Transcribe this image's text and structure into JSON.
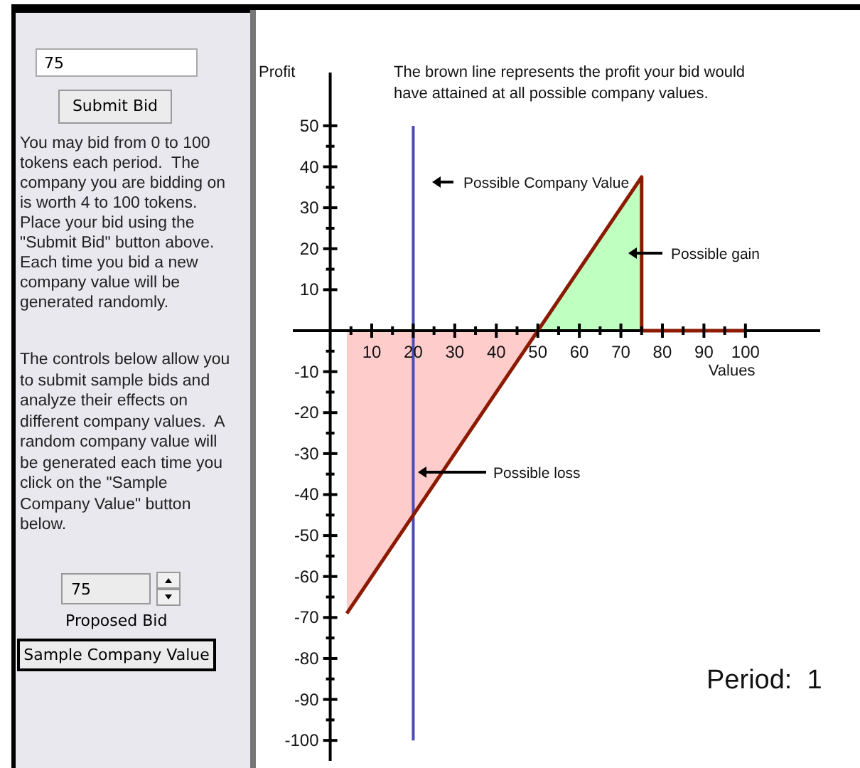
{
  "chart_data": {
    "type": "line",
    "title": "The brown line represents the profit your bid would have attained at all possible company values.",
    "xlabel": "Values",
    "ylabel": "Profit",
    "xlim": [
      -9,
      118
    ],
    "ylim": [
      -105,
      63
    ],
    "xticks": [
      {
        "value": 5,
        "label": null
      },
      10,
      {
        "value": 15,
        "label": null
      },
      20,
      {
        "value": 25,
        "label": null
      },
      30,
      {
        "value": 35,
        "label": null
      },
      40,
      {
        "value": 45,
        "label": null
      },
      50,
      {
        "value": 55,
        "label": null
      },
      60,
      {
        "value": 65,
        "label": null
      },
      70,
      {
        "value": 75,
        "label": null
      },
      80,
      {
        "value": 85,
        "label": null
      },
      90,
      {
        "value": 95,
        "label": null
      },
      100
    ],
    "yticks": [
      -100,
      {
        "value": -95,
        "label": null
      },
      -90,
      {
        "value": -85,
        "label": null
      },
      -80,
      {
        "value": -75,
        "label": null
      },
      -70,
      {
        "value": -65,
        "label": null
      },
      -60,
      {
        "value": -55,
        "label": null
      },
      -50,
      {
        "value": -45,
        "label": null
      },
      -40,
      {
        "value": -35,
        "label": null
      },
      -30,
      {
        "value": -25,
        "label": null
      },
      -20,
      {
        "value": -15,
        "label": null
      },
      -10,
      {
        "value": -5,
        "label": null
      },
      10,
      {
        "value": 15,
        "label": null
      },
      20,
      {
        "value": 25,
        "label": null
      },
      30,
      {
        "value": 35,
        "label": null
      },
      40,
      {
        "value": 45,
        "label": null
      },
      50
    ],
    "marker": "none",
    "series": [
      {
        "type": "area",
        "color": "#ffcccc",
        "x": [
          4,
          50
        ],
        "values": [
          -69,
          0
        ]
      },
      {
        "type": "area",
        "color": "#bfffbf",
        "x": [
          50,
          75
        ],
        "values": [
          0,
          37.5
        ]
      },
      {
        "type": "line",
        "color": "#4b4bb8",
        "x": [
          20,
          20
        ],
        "values": [
          -100,
          50
        ]
      },
      {
        "type": "line",
        "color": "#8b1a00",
        "x": [
          4,
          75,
          75,
          100
        ],
        "values": [
          -69,
          37.5,
          0,
          0
        ]
      }
    ],
    "annotations": [
      "75",
      "Submit Bid",
      "You may bid from 0 to 100 tokens each period.  The company you are bidding on is worth 4 to 100 tokens. Place your bid using the \"Submit Bid\" button above. Each time you bid a new company value will be generated randomly.",
      "The controls below allow you to submit sample bids and analyze their effects on different company values.  A random company value will be generated each time you click on the \"Sample Company Value\" button below.",
      "75",
      "Proposed Bid",
      "Sample Company Value",
      "Period:  1",
      "Possible Company Value",
      "Possible gain",
      "Possible loss"
    ]
  }
}
